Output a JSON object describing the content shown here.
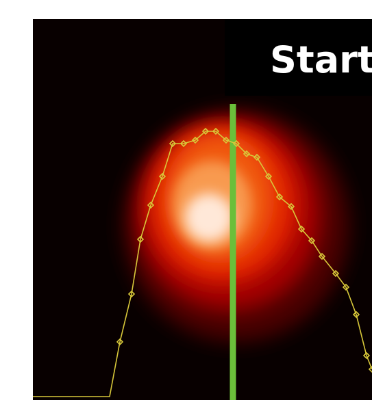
{
  "label": "Start"
}
